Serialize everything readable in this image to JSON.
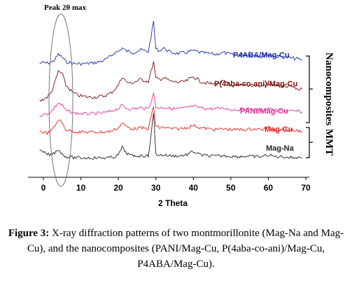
{
  "chart_data": {
    "type": "line",
    "xlabel": "2 Theta",
    "xlim": [
      -3,
      70
    ],
    "x_ticks": [
      "0",
      "10",
      "20",
      "30",
      "40",
      "50",
      "60",
      "70"
    ],
    "annotation": "Peak 2θ max",
    "series": [
      {
        "name": "P4ABA/Mag-Cu",
        "color": "#1a2ba8",
        "x": [
          -1,
          0,
          1,
          2,
          3,
          4,
          5,
          6,
          8,
          10,
          12,
          14,
          16,
          18,
          19,
          20,
          21,
          22,
          23,
          24,
          26,
          28,
          29.4,
          30,
          31,
          32,
          34,
          36,
          38,
          40,
          42,
          44,
          46,
          48,
          50,
          52,
          54,
          56,
          58,
          60,
          62,
          64,
          66,
          68,
          69
        ],
        "y": [
          0.9,
          0.95,
          0.92,
          0.96,
          1.1,
          1.4,
          1.25,
          1.0,
          0.9,
          0.88,
          0.9,
          0.95,
          1.05,
          1.3,
          1.5,
          1.55,
          1.75,
          1.6,
          1.55,
          1.5,
          1.65,
          1.55,
          3.2,
          1.7,
          1.6,
          1.75,
          1.5,
          1.45,
          1.5,
          1.6,
          1.5,
          1.45,
          1.4,
          1.5,
          1.4,
          1.35,
          1.4,
          1.35,
          1.3,
          1.4,
          1.3,
          1.25,
          1.2,
          1.15,
          1.1
        ]
      },
      {
        "name": "P(4aba-co-ani)/Mag-Cu",
        "color": "#7b1010",
        "x": [
          -1,
          0,
          1,
          2,
          3,
          4,
          5,
          6,
          8,
          10,
          12,
          14,
          16,
          18,
          19,
          20,
          21,
          22,
          23,
          24,
          26,
          28,
          29.4,
          30,
          31,
          32,
          34,
          36,
          38,
          40,
          42,
          44,
          46,
          48,
          50,
          52,
          54,
          56,
          58,
          60,
          62,
          64,
          66,
          68,
          69
        ],
        "y": [
          0.6,
          0.7,
          0.8,
          1.0,
          1.5,
          2.1,
          2.0,
          1.4,
          1.0,
          0.85,
          0.8,
          0.8,
          0.85,
          1.0,
          1.2,
          1.4,
          1.85,
          1.6,
          1.5,
          1.55,
          1.7,
          1.6,
          2.6,
          1.75,
          1.7,
          1.8,
          1.6,
          1.55,
          1.6,
          1.85,
          1.6,
          1.5,
          1.45,
          1.6,
          1.4,
          1.35,
          1.4,
          1.4,
          1.35,
          1.45,
          1.4,
          1.3,
          1.35,
          1.2,
          1.2
        ]
      },
      {
        "name": "PANI/Mag-Cu",
        "color": "#e0309a",
        "x": [
          -1,
          0,
          1,
          2,
          3,
          4,
          5,
          6,
          8,
          10,
          12,
          14,
          16,
          18,
          19,
          20,
          21,
          22,
          23,
          24,
          26,
          28,
          29.4,
          30,
          31,
          32,
          34,
          36,
          38,
          40,
          42,
          44,
          46,
          48,
          50,
          52,
          54,
          56,
          58,
          60,
          62,
          64,
          66,
          68,
          69
        ],
        "y": [
          0.8,
          0.85,
          0.9,
          1.0,
          1.3,
          1.55,
          1.4,
          1.1,
          0.95,
          0.9,
          0.9,
          0.92,
          0.95,
          1.05,
          1.15,
          1.2,
          1.4,
          1.25,
          1.2,
          1.2,
          1.25,
          1.2,
          2.1,
          1.3,
          1.25,
          1.3,
          1.2,
          1.2,
          1.25,
          1.35,
          1.25,
          1.2,
          1.2,
          1.25,
          1.15,
          1.15,
          1.2,
          1.15,
          1.1,
          1.2,
          1.1,
          1.1,
          1.05,
          1.05,
          1.0
        ]
      },
      {
        "name": "Mag-Cu",
        "color": "#e02020",
        "x": [
          -1,
          0,
          1,
          2,
          3,
          4,
          5,
          6,
          8,
          10,
          12,
          14,
          16,
          18,
          19,
          20,
          21,
          22,
          23,
          24,
          26,
          28,
          29.4,
          30,
          31,
          32,
          34,
          36,
          38,
          40,
          42,
          44,
          46,
          48,
          50,
          52,
          54,
          56,
          58,
          60,
          62,
          64,
          66,
          68,
          69
        ],
        "y": [
          0.9,
          0.85,
          0.8,
          0.9,
          1.2,
          1.6,
          1.4,
          1.0,
          0.9,
          0.85,
          0.85,
          0.85,
          0.85,
          0.9,
          1.0,
          1.1,
          1.4,
          1.2,
          1.1,
          1.05,
          1.1,
          1.05,
          2.4,
          1.2,
          1.1,
          1.15,
          1.05,
          1.05,
          1.1,
          1.25,
          1.1,
          1.05,
          1.0,
          1.05,
          1.0,
          1.0,
          1.0,
          1.05,
          1.0,
          1.1,
          1.0,
          1.0,
          0.95,
          0.95,
          0.9
        ]
      },
      {
        "name": "Mag-Na",
        "color": "#222222",
        "x": [
          -1,
          0,
          1,
          2,
          3,
          4,
          5,
          6,
          8,
          10,
          12,
          14,
          16,
          18,
          19,
          20,
          21,
          22,
          23,
          24,
          26,
          28,
          29.4,
          30,
          31,
          32,
          34,
          36,
          38,
          40,
          42,
          44,
          46,
          48,
          50,
          52,
          54,
          56,
          58,
          60,
          62,
          64,
          66,
          68,
          69
        ],
        "y": [
          1.2,
          1.1,
          1.0,
          0.95,
          1.1,
          1.3,
          1.0,
          0.85,
          0.8,
          0.78,
          0.78,
          0.78,
          0.78,
          0.8,
          0.85,
          0.95,
          1.4,
          1.1,
          0.95,
          0.9,
          0.9,
          0.9,
          3.4,
          1.0,
          0.95,
          0.95,
          0.9,
          0.9,
          0.95,
          1.15,
          0.95,
          0.9,
          0.88,
          0.9,
          0.88,
          0.85,
          0.88,
          0.85,
          0.85,
          0.95,
          0.85,
          0.85,
          0.8,
          0.8,
          0.8
        ]
      }
    ],
    "group_labels": [
      "Nanocomposites",
      "MMT"
    ]
  },
  "caption": {
    "label": "Figure 3:",
    "text": " X-ray diffraction patterns of two montmorillonite (Mag-Na and Mag-Cu), and the nanocomposites (PANI/Mag-Cu, P(4aba-co-ani)/Mag-Cu, P4ABA/Mag-Cu)."
  }
}
